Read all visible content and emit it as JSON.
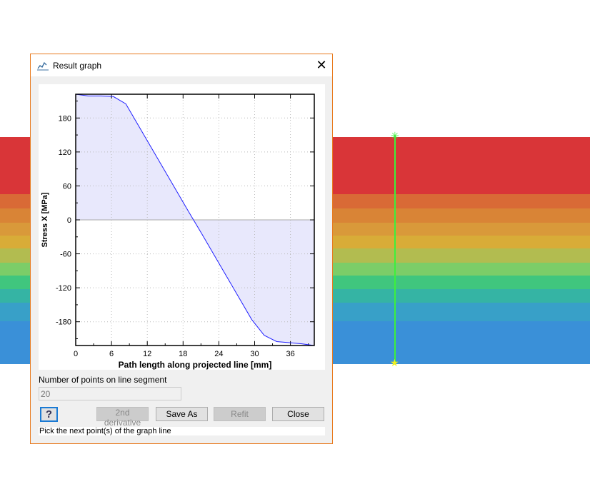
{
  "dialog": {
    "title": "Result graph",
    "icon": "graph-icon",
    "close_icon": "close-icon"
  },
  "controls": {
    "points_label": "Number of points on line segment",
    "points_value": "20",
    "help_label": "?",
    "derivative_label": "2nd derivative",
    "save_label": "Save As",
    "refit_label": "Refit",
    "close_label": "Close",
    "status": "Pick the next point(s) of the graph line"
  },
  "colors": {
    "line": "#2020ff",
    "fill": "#e8e8fc",
    "accent": "#e87a1e"
  },
  "chart_data": {
    "type": "area",
    "xlabel": "Path length along projected line [mm]",
    "ylabel": "Stress X [MPa]",
    "xlim": [
      0,
      40
    ],
    "ylim": [
      -222,
      222
    ],
    "xticks": [
      0,
      6,
      12,
      18,
      24,
      30,
      36
    ],
    "yticks": [
      180,
      120,
      60,
      0,
      -60,
      -120,
      -180
    ],
    "grid": true,
    "x": [
      0,
      2.1,
      4.2,
      6.3,
      8.4,
      10.5,
      12.6,
      14.7,
      16.8,
      18.9,
      21.1,
      23.2,
      25.3,
      27.4,
      29.5,
      31.6,
      33.7,
      35.8,
      37.9,
      40
    ],
    "y": [
      222,
      219,
      219,
      218,
      205,
      167,
      129,
      91,
      53,
      15,
      -24,
      -62,
      -100,
      -138,
      -176,
      -204,
      -215,
      -217,
      -219,
      -222
    ]
  }
}
